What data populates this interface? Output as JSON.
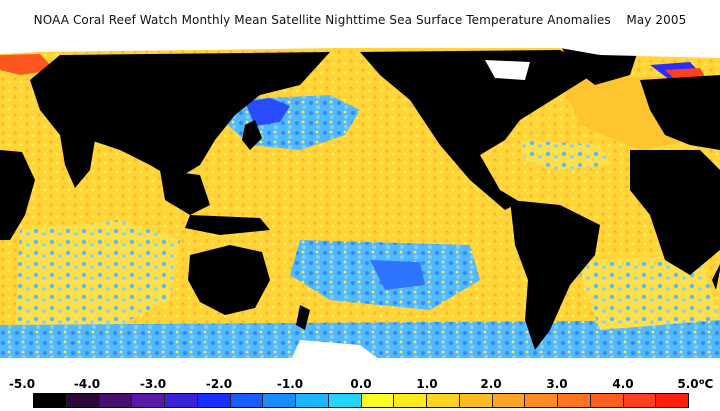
{
  "title": "NOAA Coral Reef Watch Monthly Mean Satellite Nighttime Sea Surface Temperature Anomalies    May 2005",
  "colorbar": {
    "labels": [
      "-5.0",
      "-4.0",
      "-3.0",
      "-2.0",
      "-1.0",
      "0.0",
      "1.0",
      "2.0",
      "3.0",
      "4.0",
      "5.0"
    ],
    "unit_prefix": "",
    "unit_degree": "o",
    "unit_letter": "C",
    "colors": [
      "#000000",
      "#2b0a3a",
      "#4a1070",
      "#5a1aa8",
      "#3a22d8",
      "#1a2cff",
      "#1a5cff",
      "#1a8cff",
      "#1ab4ff",
      "#22d4ff",
      "#ffff20",
      "#ffea20",
      "#ffd420",
      "#ffbc20",
      "#ffa420",
      "#ff8c20",
      "#ff7420",
      "#ff5c20",
      "#ff4020",
      "#ff2010"
    ]
  },
  "legend_colors": {
    "land": "#000000",
    "ice": "#ffffff",
    "ocean_warm": "#ffd23c",
    "ocean_cool": "#49b6ff",
    "ocean_strong_cool": "#1a2cff"
  }
}
